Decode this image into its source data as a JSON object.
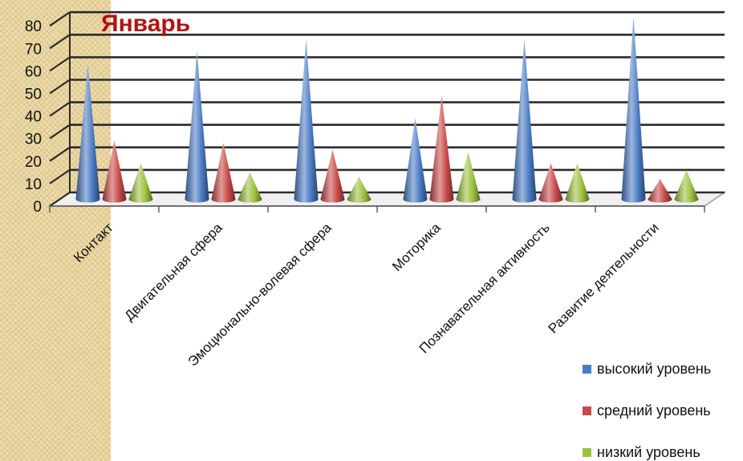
{
  "chart_data": {
    "type": "bar",
    "style": "3d-cone",
    "title": "Январь",
    "categories": [
      "Контакт",
      "Двигательная сфера",
      "Эмоционально-волевая сфера",
      "Моторика",
      "Познавательная активность",
      "Развитие деятельности"
    ],
    "series": [
      {
        "name": "высокий уровень",
        "color": "#4a7bc4",
        "values": [
          60,
          66,
          71,
          36,
          71,
          81
        ]
      },
      {
        "name": "средний уровень",
        "color": "#c84a48",
        "values": [
          26,
          25,
          22,
          46,
          16,
          9
        ]
      },
      {
        "name": "низкий уровень",
        "color": "#9cc23e",
        "values": [
          16,
          12,
          10,
          21,
          16,
          13
        ]
      }
    ],
    "y_ticks": [
      "0",
      "10",
      "20",
      "30",
      "40",
      "50",
      "60",
      "70",
      "80"
    ],
    "ylim": [
      0,
      80
    ],
    "grid": true,
    "legend_position": "bottom-right"
  }
}
